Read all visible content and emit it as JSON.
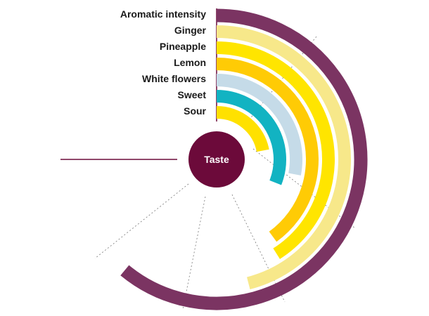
{
  "chart_data": {
    "type": "radial-bar",
    "center_label": "Taste",
    "max_value": 100,
    "categories": [
      "Aromatic intensity",
      "Ginger",
      "Pineapple",
      "Lemon",
      "White flowers",
      "Sweet",
      "Sour"
    ],
    "values": [
      61,
      46,
      41,
      40,
      28,
      31,
      22
    ],
    "colors": {
      "Aromatic intensity": "#7b3462",
      "Ginger": "#f7e88a",
      "Pineapple": "#ffe500",
      "Lemon": "#ffcb05",
      "White flowers": "#c5dbe8",
      "Sweet": "#12b3c2",
      "Sour": "#ffe100",
      "center": "#6c0a3a",
      "accent_line": "#6c0a3a"
    }
  }
}
